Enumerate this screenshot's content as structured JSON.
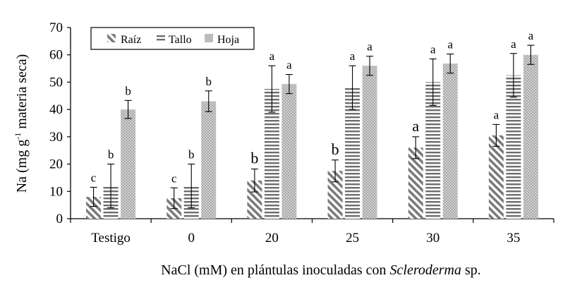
{
  "chart_data": {
    "type": "bar",
    "title": "",
    "xlabel_parts": [
      "NaCl (mM) en plántulas inoculadas con ",
      "Scleroderma",
      " sp."
    ],
    "ylabel": "Na (mg g-1 materia seca)",
    "ylabel_parts": [
      "Na (mg g",
      "-1",
      " materia seca)"
    ],
    "ylim": [
      0,
      70
    ],
    "yticks": [
      0,
      10,
      20,
      30,
      40,
      50,
      60,
      70
    ],
    "categories": [
      "Testigo",
      "0",
      "20",
      "25",
      "30",
      "35"
    ],
    "series": [
      {
        "name": "Raíz",
        "pattern": "diagonal",
        "values": [
          8,
          7.5,
          14,
          17.5,
          26,
          30.5
        ],
        "errors": [
          3.5,
          3.8,
          4.2,
          4,
          4,
          4
        ],
        "letters": [
          "c",
          "c",
          "b",
          "b",
          "a",
          "a"
        ],
        "letter_large": [
          false,
          false,
          true,
          true,
          true,
          false
        ]
      },
      {
        "name": "Tallo",
        "pattern": "horizontal",
        "values": [
          12,
          12,
          47.5,
          48,
          50,
          52.5
        ],
        "errors": [
          8,
          8,
          8.5,
          8,
          8.5,
          8
        ],
        "letters": [
          "b",
          "b",
          "a",
          "a",
          "a",
          "a"
        ],
        "letter_large": [
          false,
          false,
          false,
          false,
          false,
          false
        ]
      },
      {
        "name": "Hoja",
        "pattern": "dots",
        "values": [
          40,
          43,
          49.3,
          56,
          56.8,
          60
        ],
        "errors": [
          3.3,
          3.8,
          3.5,
          3.5,
          3.5,
          3.5
        ],
        "letters": [
          "b",
          "b",
          "a",
          "a",
          "a",
          "a"
        ],
        "letter_large": [
          false,
          false,
          false,
          false,
          false,
          false
        ]
      }
    ],
    "legend_position": "top-left",
    "grid": false
  }
}
